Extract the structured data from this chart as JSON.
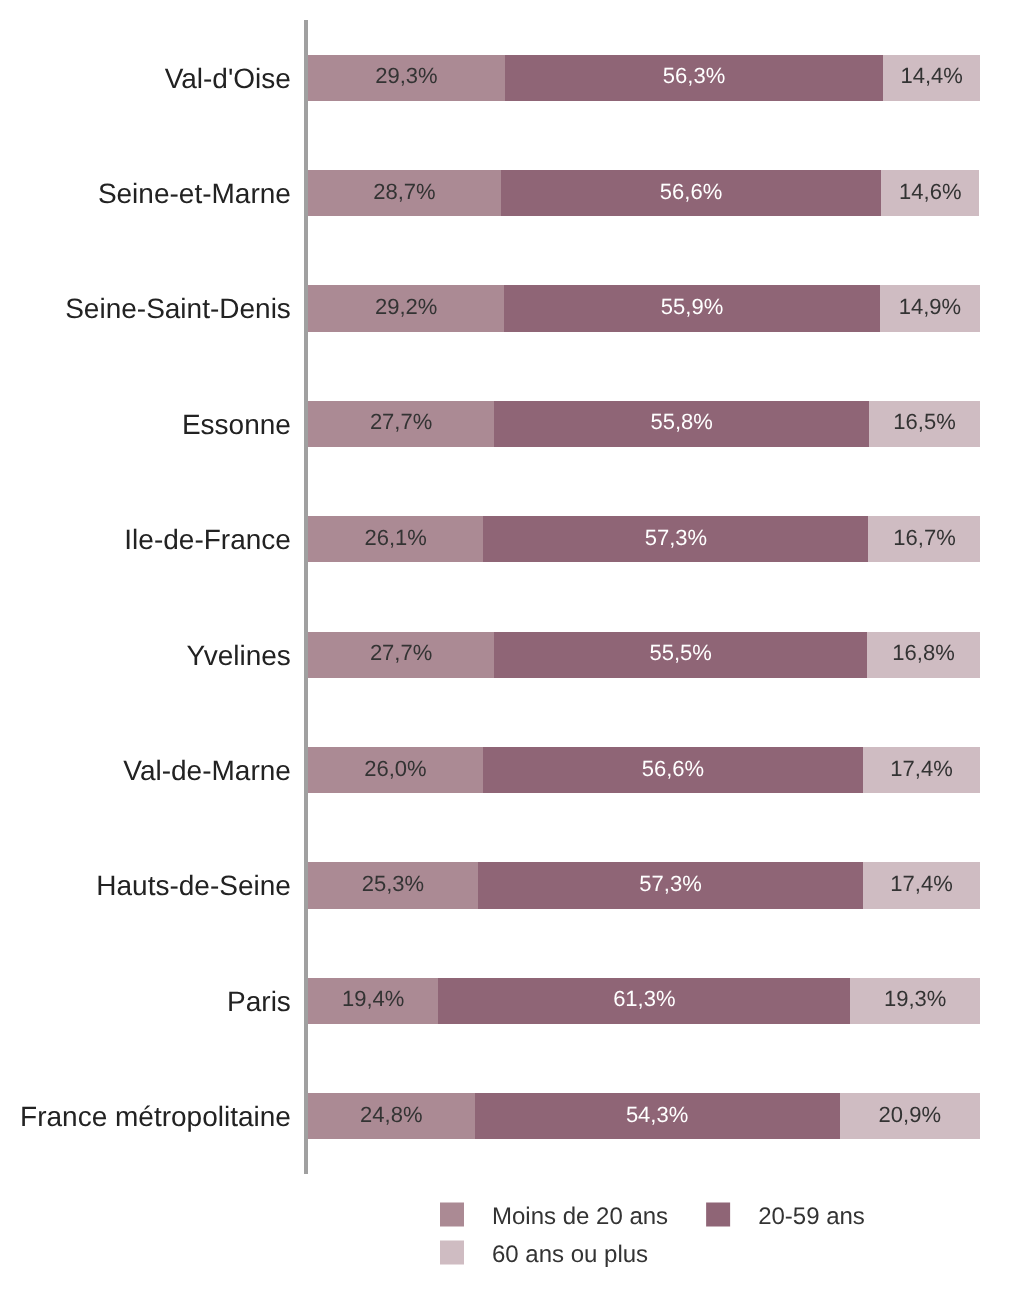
{
  "chart_data": {
    "type": "bar",
    "orientation": "horizontal",
    "stacked": true,
    "xlim": [
      0,
      100
    ],
    "tick_labels": "y",
    "legend": "bottom",
    "categories": [
      "Val-d'Oise",
      "Seine-et-Marne",
      "Seine-Saint-Denis",
      "Essonne",
      "Ile-de-France",
      "Yvelines",
      "Val-de-Marne",
      "Hauts-de-Seine",
      "Paris",
      "France métropolitaine"
    ],
    "series": [
      {
        "name": "Moins de 20 ans",
        "color": "#ab8a94",
        "values": [
          29.3,
          28.7,
          29.2,
          27.7,
          26.1,
          27.7,
          26.0,
          25.3,
          19.4,
          24.8
        ],
        "value_labels": [
          "29,3%",
          "28,7%",
          "29,2%",
          "27,7%",
          "26,1%",
          "27,7%",
          "26,0%",
          "25,3%",
          "19,4%",
          "24,8%"
        ]
      },
      {
        "name": "20-59 ans",
        "color": "#8f6576",
        "values": [
          56.3,
          56.6,
          55.9,
          55.8,
          57.3,
          55.5,
          56.6,
          57.3,
          61.3,
          54.3
        ],
        "value_labels": [
          "56,3%",
          "56,6%",
          "55,9%",
          "55,8%",
          "57,3%",
          "55,5%",
          "56,6%",
          "57,3%",
          "61,3%",
          "54,3%"
        ]
      },
      {
        "name": "60 ans ou plus",
        "color": "#cfbcc2",
        "values": [
          14.4,
          14.6,
          14.9,
          16.5,
          16.7,
          16.8,
          17.4,
          17.4,
          19.3,
          20.9
        ],
        "value_labels": [
          "14,4%",
          "14,6%",
          "14,9%",
          "16,5%",
          "16,7%",
          "16,8%",
          "17,4%",
          "17,4%",
          "19,3%",
          "20,9%"
        ]
      }
    ]
  }
}
